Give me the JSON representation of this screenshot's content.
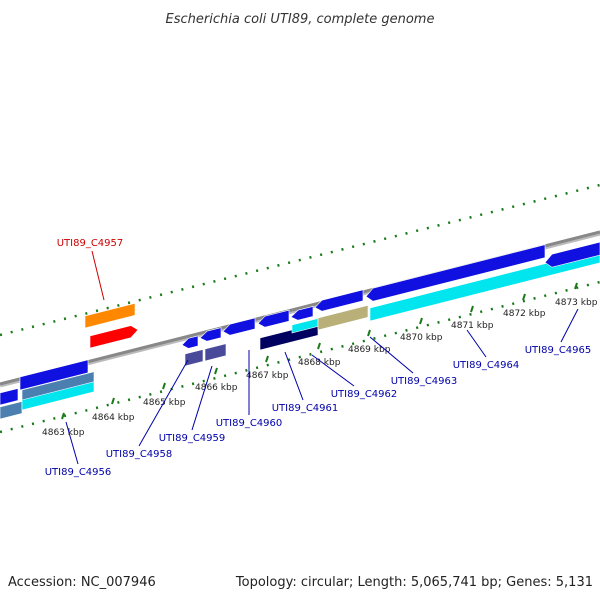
{
  "title": "Escherichia coli UTI89, complete genome",
  "footer": {
    "accession": "Accession: NC_007946",
    "summary": "Topology: circular; Length: 5,065,741 bp; Genes: 5,131"
  },
  "ticks": [
    {
      "label": "4863 kbp"
    },
    {
      "label": "4864 kbp"
    },
    {
      "label": "4865 kbp"
    },
    {
      "label": "4866 kbp"
    },
    {
      "label": "4867 kbp"
    },
    {
      "label": "4868 kbp"
    },
    {
      "label": "4869 kbp"
    },
    {
      "label": "4870 kbp"
    },
    {
      "label": "4871 kbp"
    },
    {
      "label": "4872 kbp"
    },
    {
      "label": "4873 kbp"
    }
  ],
  "gene_labels": [
    {
      "label": "UTI89_C4956",
      "color": "#0000aa"
    },
    {
      "label": "UTI89_C4957",
      "color": "#cc0000"
    },
    {
      "label": "UTI89_C4958",
      "color": "#0000aa"
    },
    {
      "label": "UTI89_C4959",
      "color": "#0000aa"
    },
    {
      "label": "UTI89_C4960",
      "color": "#0000aa"
    },
    {
      "label": "UTI89_C4961",
      "color": "#0000aa"
    },
    {
      "label": "UTI89_C4962",
      "color": "#0000aa"
    },
    {
      "label": "UTI89_C4963",
      "color": "#0000aa"
    },
    {
      "label": "UTI89_C4964",
      "color": "#0000aa"
    },
    {
      "label": "UTI89_C4965",
      "color": "#0000aa"
    }
  ],
  "colors": {
    "backbone": "#888888",
    "tick": "#1a7a1a",
    "forward_gene": "#1010e0",
    "cyan_gene": "#00e5ee",
    "steelblue_gene": "#4a7fb0",
    "orange_gene": "#ff8800",
    "red_gene": "#ff0000",
    "slate_gene": "#4a4a9a",
    "navy_gene": "#000060",
    "khaki_gene": "#b8b078"
  }
}
